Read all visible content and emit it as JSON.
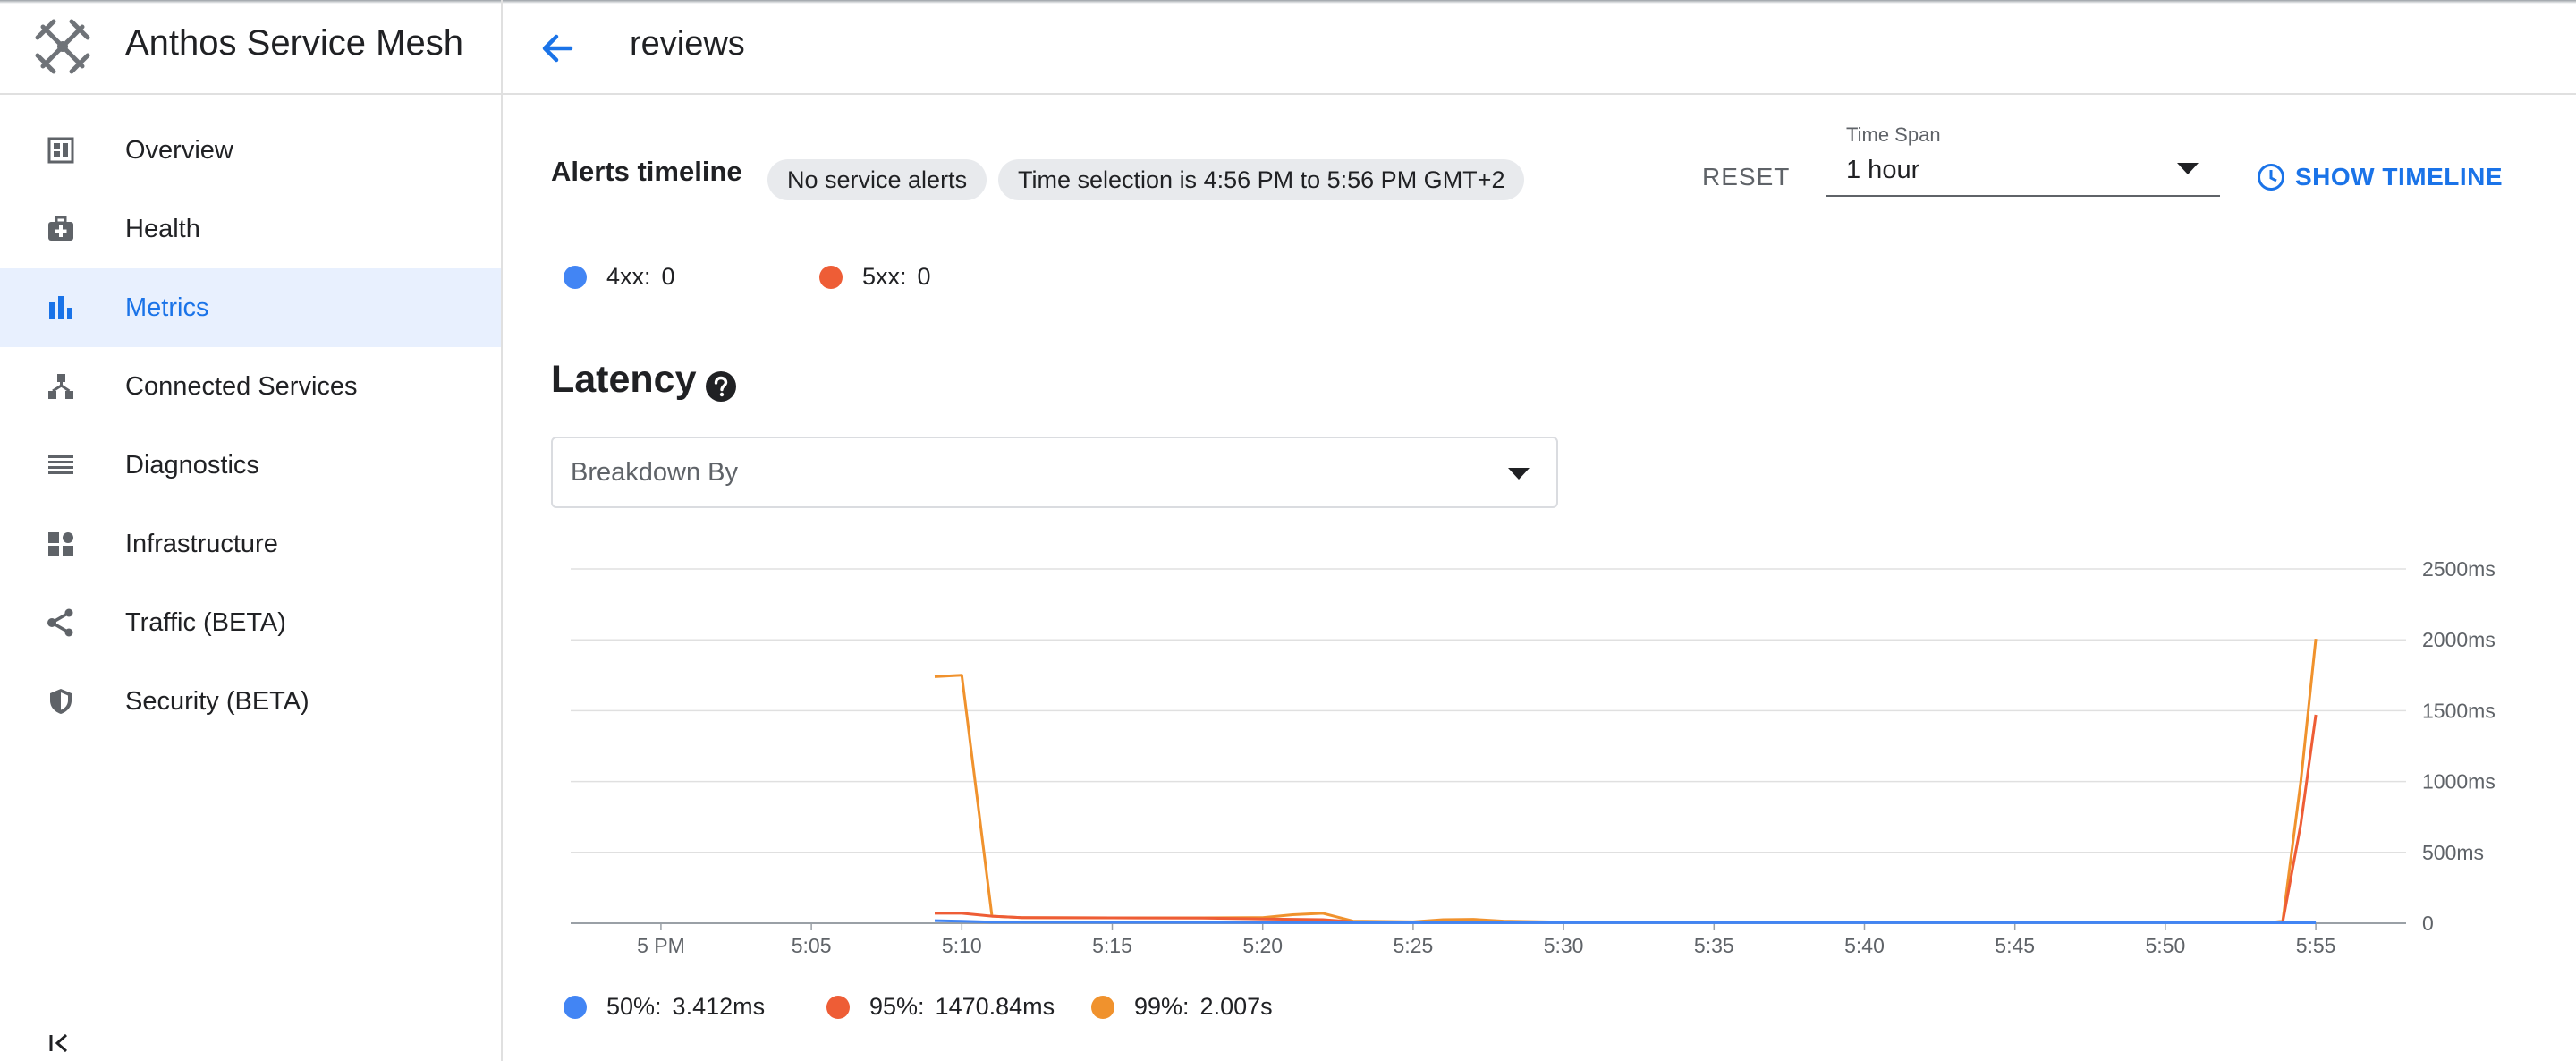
{
  "app": {
    "title": "Anthos Service Mesh",
    "logo_icon": "anthos-logo-icon"
  },
  "sidebar": {
    "items": [
      {
        "label": "Overview",
        "icon": "overview-icon",
        "active": false
      },
      {
        "label": "Health",
        "icon": "health-icon",
        "active": false
      },
      {
        "label": "Metrics",
        "icon": "metrics-icon",
        "active": true
      },
      {
        "label": "Connected Services",
        "icon": "connected-services-icon",
        "active": false
      },
      {
        "label": "Diagnostics",
        "icon": "diagnostics-icon",
        "active": false
      },
      {
        "label": "Infrastructure",
        "icon": "infrastructure-icon",
        "active": false
      },
      {
        "label": "Traffic (BETA)",
        "icon": "traffic-icon",
        "active": false
      },
      {
        "label": "Security (BETA)",
        "icon": "security-icon",
        "active": false
      }
    ],
    "collapse_icon": "collapse-sidebar-icon"
  },
  "header": {
    "back_icon": "arrow-back-icon",
    "title": "reviews"
  },
  "alerts": {
    "title": "Alerts timeline",
    "chip_no_alerts": "No service alerts",
    "chip_time_selection": "Time selection is 4:56 PM to 5:56 PM GMT+2",
    "reset_label": "RESET",
    "time_span_label": "Time Span",
    "time_span_value": "1 hour",
    "show_timeline_label": "SHOW TIMELINE",
    "legend": [
      {
        "name": "4xx:",
        "value": "0",
        "color": "#4285f4"
      },
      {
        "name": "5xx:",
        "value": "0",
        "color": "#ee5d36"
      }
    ]
  },
  "latency": {
    "title": "Latency",
    "help_icon": "help-icon",
    "breakdown_label": "Breakdown By",
    "legend": [
      {
        "name": "50%:",
        "value": "3.412ms",
        "color": "#4285f4"
      },
      {
        "name": "95%:",
        "value": "1470.84ms",
        "color": "#ee5d36"
      },
      {
        "name": "99%:",
        "value": "2.007s",
        "color": "#f0922d"
      }
    ]
  },
  "colors": {
    "accent": "#1a73e8",
    "active_bg": "#e8f0fe",
    "p50": "#4285f4",
    "p95": "#ee5d36",
    "p99": "#f0922d"
  },
  "chart_data": {
    "type": "line",
    "title": "Latency",
    "xlabel": "",
    "ylabel": "",
    "x_ticks": [
      "5 PM",
      "5:05",
      "5:10",
      "5:15",
      "5:20",
      "5:25",
      "5:30",
      "5:35",
      "5:40",
      "5:45",
      "5:50",
      "5:55"
    ],
    "y_ticks": [
      "0",
      "500ms",
      "1000ms",
      "1500ms",
      "2000ms",
      "2500ms"
    ],
    "ylim": [
      0,
      2500
    ],
    "xlim_minutes_after_5pm": [
      -3,
      58
    ],
    "y_axis_side": "right",
    "grid": true,
    "legend_position": "bottom",
    "series": [
      {
        "name": "50%",
        "color": "#4285f4",
        "x": [
          9.1,
          10,
          11,
          15,
          20,
          25,
          30,
          35,
          40,
          45,
          50,
          55
        ],
        "y": [
          18,
          14,
          8,
          6,
          5,
          4,
          4,
          4,
          4,
          4,
          4,
          3.4
        ]
      },
      {
        "name": "95%",
        "color": "#ee5d36",
        "x": [
          9.1,
          10,
          11,
          12,
          15,
          18,
          20,
          21,
          22,
          23,
          25,
          27,
          30,
          35,
          40,
          45,
          50,
          53.6,
          53.9,
          54.5,
          55
        ],
        "y": [
          70,
          70,
          50,
          40,
          38,
          36,
          30,
          28,
          25,
          10,
          8,
          8,
          6,
          6,
          6,
          6,
          6,
          6,
          8,
          700,
          1470.84
        ]
      },
      {
        "name": "99%",
        "color": "#f0922d",
        "x": [
          9.1,
          10,
          11,
          12,
          15,
          18,
          20,
          21,
          22,
          23,
          25,
          26,
          27,
          28,
          30,
          35,
          40,
          45,
          50,
          53.6,
          53.9,
          54.5,
          55
        ],
        "y": [
          1740,
          1750,
          50,
          40,
          38,
          38,
          40,
          60,
          70,
          15,
          10,
          25,
          28,
          15,
          8,
          8,
          8,
          8,
          8,
          8,
          15,
          1000,
          2007
        ]
      }
    ]
  }
}
